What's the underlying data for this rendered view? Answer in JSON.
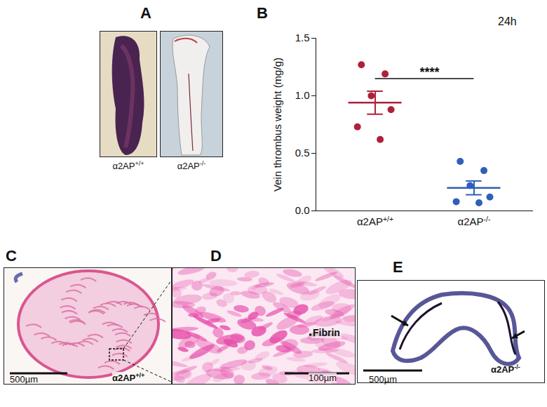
{
  "panel_labels": [
    "A",
    "B",
    "C",
    "D",
    "E"
  ],
  "panel_a": {
    "images": [
      {
        "label": "α2AP+/+"
      },
      {
        "label": "α2AP-/-"
      }
    ]
  },
  "chart_data": {
    "type": "scatter",
    "categories": [
      "α2AP+/+",
      "α2AP-/-"
    ],
    "y_label": "Vein thrombus weight (mg/g)",
    "annotations": [
      {
        "text": "24h"
      }
    ],
    "significance": {
      "text": "****",
      "y": 1.15
    },
    "values": [
      [
        1.27,
        1.19,
        1.0,
        0.88,
        0.73,
        0.62
      ],
      [
        0.43,
        0.35,
        0.22,
        0.12,
        0.08,
        0.07
      ]
    ],
    "mean": [
      0.94,
      0.2
    ],
    "sem": [
      0.1,
      0.06
    ],
    "colors": [
      "#b0203a",
      "#2f5fb8"
    ],
    "ylim": [
      0,
      1.5
    ],
    "yticks": [
      {
        "value": 0,
        "label": "0.0"
      },
      {
        "value": 0.5,
        "label": "0.5"
      },
      {
        "value": 1,
        "label": "1.0"
      },
      {
        "value": 1.5,
        "label": "1.5"
      }
    ]
  },
  "panel_c": {
    "scale_bar": "500µm",
    "label": "α2AP+/+"
  },
  "panel_d": {
    "scale_bar": "100µm",
    "arrow_label": "Fibrin"
  },
  "panel_e": {
    "scale_bar": "500µm",
    "label": "α2AP-/-"
  }
}
